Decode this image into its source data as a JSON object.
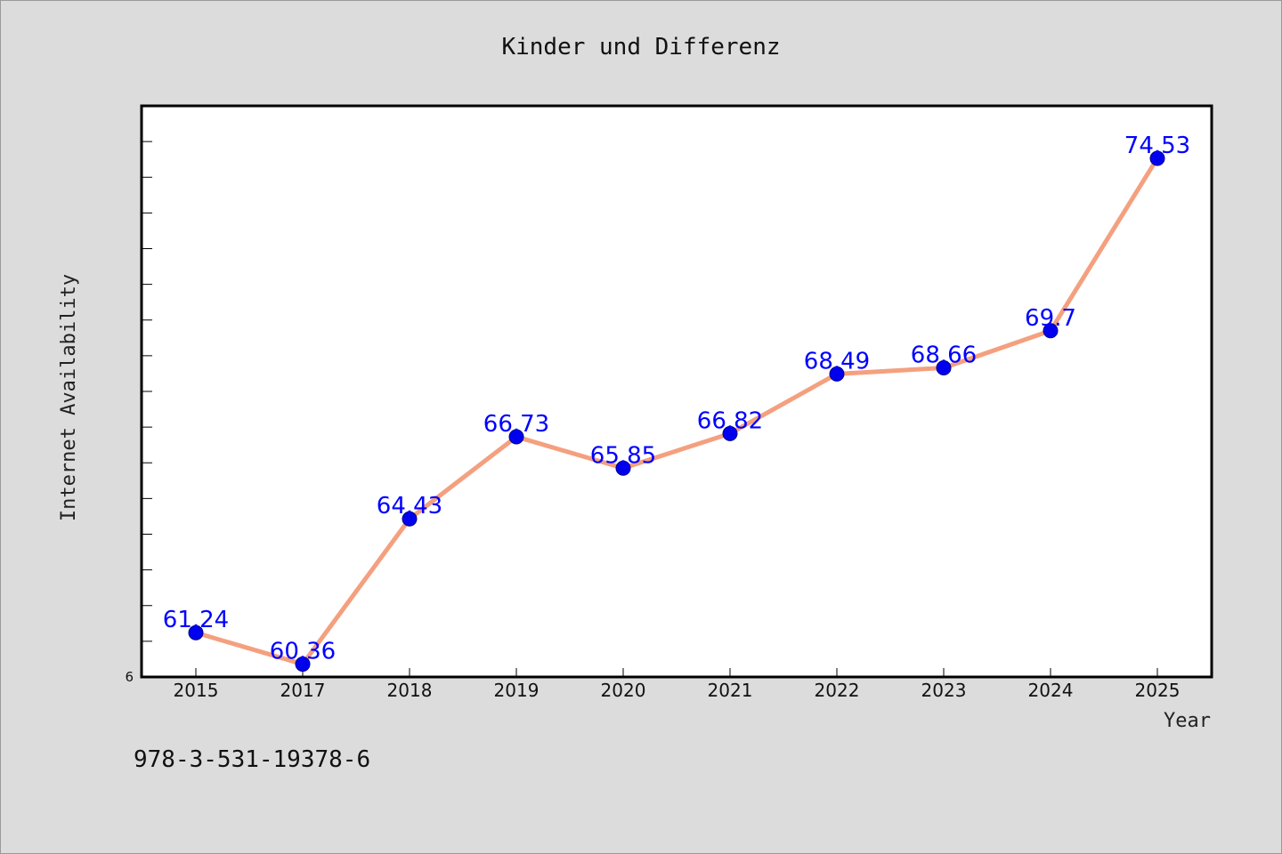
{
  "chart_data": {
    "type": "line",
    "title": "Kinder und Differenz",
    "xlabel": "Year",
    "ylabel": "Internet Availability",
    "categories": [
      "2015",
      "2017",
      "2018",
      "2019",
      "2020",
      "2021",
      "2022",
      "2023",
      "2024",
      "2025"
    ],
    "values": [
      61.24,
      60.36,
      64.43,
      66.73,
      65.85,
      66.82,
      68.49,
      68.66,
      69.7,
      74.53
    ],
    "data_labels": [
      "61.24",
      "60.36",
      "64.43",
      "66.73",
      "65.85",
      "66.82",
      "68.49",
      "68.66",
      "69.7",
      "74.53"
    ],
    "ylim": [
      60,
      76
    ],
    "y_tick_label": "6",
    "grid": false,
    "line_color": "#f4a07f",
    "marker_color": "#0000ee",
    "label_color": "#0000ff"
  },
  "footer_text": "978-3-531-19378-6"
}
